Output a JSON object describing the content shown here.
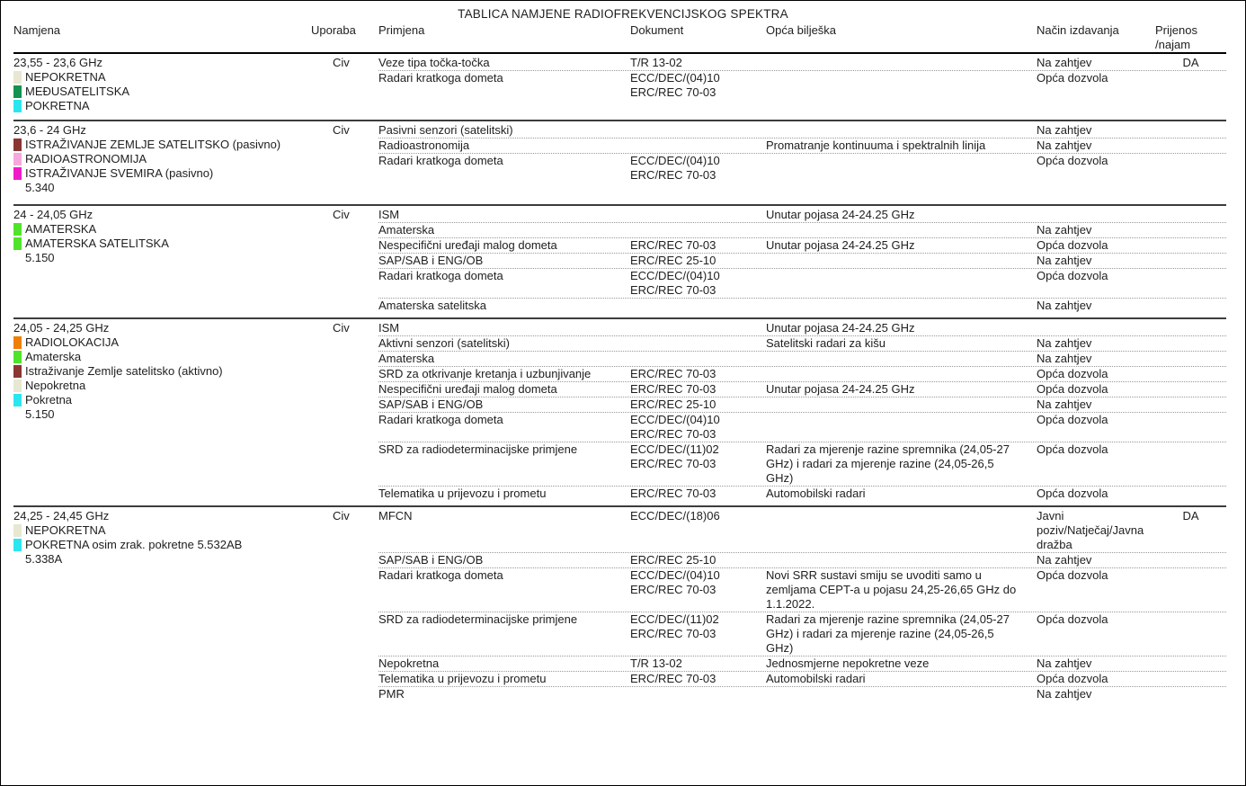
{
  "title": "TABLICA NAMJENE RADIOFREKVENCIJSKOG SPEKTRA",
  "columns": {
    "namjena": "Namjena",
    "uporaba": "Uporaba",
    "primjena": "Primjena",
    "dokument": "Dokument",
    "biljeska": "Opća bilješka",
    "nacin": "Način izdavanja",
    "prijenos": "Prijenos\n/najam"
  },
  "colors": {
    "beige": "#e7e7d2",
    "dark_green": "#12934f",
    "cyan": "#2ce6ef",
    "maroon": "#8a3632",
    "pink": "#f5a8de",
    "magenta": "#ee1cc8",
    "bright_green": "#4fe42b",
    "orange": "#ee8007"
  },
  "sections": [
    {
      "range": "23,55 - 23,6 GHz",
      "uporaba": "Civ",
      "footnote": "",
      "services": [
        {
          "color": "#e7e7d2",
          "label": "NEPOKRETNA"
        },
        {
          "color": "#12934f",
          "label": "MEĐUSATELITSKA"
        },
        {
          "color": "#2ce6ef",
          "label": "POKRETNA"
        }
      ],
      "rows": [
        {
          "primjena": "Veze tipa točka-točka",
          "dokument": "T/R 13-02",
          "biljeska": "",
          "nacin": "Na zahtjev",
          "prijenos": "DA"
        },
        {
          "primjena": "Radari kratkoga dometa",
          "dokument": "ECC/DEC/(04)10\nERC/REC 70-03",
          "biljeska": "",
          "nacin": "Opća dozvola",
          "prijenos": ""
        }
      ]
    },
    {
      "range": "23,6 - 24 GHz",
      "uporaba": "Civ",
      "footnote": "5.340",
      "services": [
        {
          "color": "#8a3632",
          "label": "ISTRAŽIVANJE ZEMLJE SATELITSKO (pasivno)"
        },
        {
          "color": "#f5a8de",
          "label": "RADIOASTRONOMIJA"
        },
        {
          "color": "#ee1cc8",
          "label": "ISTRAŽIVANJE SVEMIRA (pasivno)"
        }
      ],
      "rows": [
        {
          "primjena": "Pasivni senzori (satelitski)",
          "dokument": "",
          "biljeska": "",
          "nacin": "Na zahtjev",
          "prijenos": ""
        },
        {
          "primjena": "Radioastronomija",
          "dokument": "",
          "biljeska": "Promatranje kontinuuma i spektralnih linija",
          "nacin": "Na zahtjev",
          "prijenos": ""
        },
        {
          "primjena": "Radari kratkoga dometa",
          "dokument": "ECC/DEC/(04)10\nERC/REC 70-03",
          "biljeska": "",
          "nacin": "Opća dozvola",
          "prijenos": ""
        }
      ]
    },
    {
      "range": "24 - 24,05 GHz",
      "uporaba": "Civ",
      "footnote": "5.150",
      "services": [
        {
          "color": "#4fe42b",
          "label": "AMATERSKA"
        },
        {
          "color": "#4fe42b",
          "label": "AMATERSKA SATELITSKA"
        }
      ],
      "rows": [
        {
          "primjena": "ISM",
          "dokument": "",
          "biljeska": "Unutar pojasa 24-24.25 GHz",
          "nacin": "",
          "prijenos": ""
        },
        {
          "primjena": "Amaterska",
          "dokument": "",
          "biljeska": "",
          "nacin": "Na zahtjev",
          "prijenos": ""
        },
        {
          "primjena": "Nespecifični uređaji malog dometa",
          "dokument": "ERC/REC 70-03",
          "biljeska": "Unutar pojasa 24-24.25 GHz",
          "nacin": "Opća dozvola",
          "prijenos": ""
        },
        {
          "primjena": "SAP/SAB i ENG/OB",
          "dokument": "ERC/REC 25-10",
          "biljeska": "",
          "nacin": "Na zahtjev",
          "prijenos": ""
        },
        {
          "primjena": "Radari kratkoga dometa",
          "dokument": "ECC/DEC/(04)10\nERC/REC 70-03",
          "biljeska": "",
          "nacin": "Opća dozvola",
          "prijenos": ""
        },
        {
          "primjena": "Amaterska satelitska",
          "dokument": "",
          "biljeska": "",
          "nacin": "Na zahtjev",
          "prijenos": ""
        }
      ]
    },
    {
      "range": "24,05 - 24,25 GHz",
      "uporaba": "Civ",
      "footnote": "5.150",
      "services": [
        {
          "color": "#ee8007",
          "label": "RADIOLOKACIJA"
        },
        {
          "color": "#4fe42b",
          "label": "Amaterska"
        },
        {
          "color": "#8a3632",
          "label": "Istraživanje Zemlje satelitsko (aktivno)"
        },
        {
          "color": "#e7e7d2",
          "label": "Nepokretna"
        },
        {
          "color": "#2ce6ef",
          "label": "Pokretna"
        }
      ],
      "rows": [
        {
          "primjena": "ISM",
          "dokument": "",
          "biljeska": "Unutar pojasa 24-24.25 GHz",
          "nacin": "",
          "prijenos": ""
        },
        {
          "primjena": "Aktivni senzori (satelitski)",
          "dokument": "",
          "biljeska": "Satelitski radari za kišu",
          "nacin": "Na zahtjev",
          "prijenos": ""
        },
        {
          "primjena": "Amaterska",
          "dokument": "",
          "biljeska": "",
          "nacin": "Na zahtjev",
          "prijenos": ""
        },
        {
          "primjena": "SRD za otkrivanje kretanja i uzbunjivanje",
          "dokument": "ERC/REC 70-03",
          "biljeska": "",
          "nacin": "Opća dozvola",
          "prijenos": ""
        },
        {
          "primjena": "Nespecifični uređaji malog dometa",
          "dokument": "ERC/REC 70-03",
          "biljeska": "Unutar pojasa 24-24.25 GHz",
          "nacin": "Opća dozvola",
          "prijenos": ""
        },
        {
          "primjena": "SAP/SAB i ENG/OB",
          "dokument": "ERC/REC 25-10",
          "biljeska": "",
          "nacin": "Na zahtjev",
          "prijenos": ""
        },
        {
          "primjena": "Radari kratkoga dometa",
          "dokument": "ECC/DEC/(04)10\nERC/REC 70-03",
          "biljeska": "",
          "nacin": "Opća dozvola",
          "prijenos": ""
        },
        {
          "primjena": "SRD za radiodeterminacijske primjene",
          "dokument": "ECC/DEC/(11)02\nERC/REC 70-03",
          "biljeska": "Radari za mjerenje razine spremnika (24,05-27\nGHz) i radari za mjerenje razine (24,05-26,5\nGHz)",
          "nacin": "Opća dozvola",
          "prijenos": ""
        },
        {
          "primjena": "Telematika u prijevozu i prometu",
          "dokument": "ERC/REC 70-03",
          "biljeska": "Automobilski radari",
          "nacin": "Opća dozvola",
          "prijenos": ""
        }
      ]
    },
    {
      "range": "24,25 - 24,45 GHz",
      "uporaba": "Civ",
      "footnote": "5.338A",
      "services": [
        {
          "color": "#e7e7d2",
          "label": "NEPOKRETNA"
        },
        {
          "color": "#2ce6ef",
          "label": "POKRETNA osim zrak. pokretne 5.532AB"
        }
      ],
      "rows": [
        {
          "primjena": "MFCN",
          "dokument": "ECC/DEC/(18)06",
          "biljeska": "",
          "nacin": "Javni\npoziv/Natječaj/Javna\ndražba",
          "prijenos": "DA"
        },
        {
          "primjena": "SAP/SAB i ENG/OB",
          "dokument": "ERC/REC 25-10",
          "biljeska": "",
          "nacin": "Na zahtjev",
          "prijenos": ""
        },
        {
          "primjena": "Radari kratkoga dometa",
          "dokument": "ECC/DEC/(04)10\nERC/REC 70-03",
          "biljeska": "Novi SRR sustavi smiju se uvoditi samo u\nzemljama CEPT-a u pojasu 24,25-26,65 GHz do\n1.1.2022.",
          "nacin": "Opća dozvola",
          "prijenos": ""
        },
        {
          "primjena": "SRD za radiodeterminacijske primjene",
          "dokument": "ECC/DEC/(11)02\nERC/REC 70-03",
          "biljeska": "Radari za mjerenje razine spremnika (24,05-27\nGHz) i radari za mjerenje razine (24,05-26,5\nGHz)",
          "nacin": "Opća dozvola",
          "prijenos": ""
        },
        {
          "primjena": "Nepokretna",
          "dokument": "T/R 13-02",
          "biljeska": "Jednosmjerne nepokretne veze",
          "nacin": "Na zahtjev",
          "prijenos": ""
        },
        {
          "primjena": "Telematika u prijevozu i prometu",
          "dokument": "ERC/REC 70-03",
          "biljeska": "Automobilski radari",
          "nacin": "Opća dozvola",
          "prijenos": ""
        },
        {
          "primjena": "PMR",
          "dokument": "",
          "biljeska": "",
          "nacin": "Na zahtjev",
          "prijenos": ""
        }
      ]
    }
  ]
}
